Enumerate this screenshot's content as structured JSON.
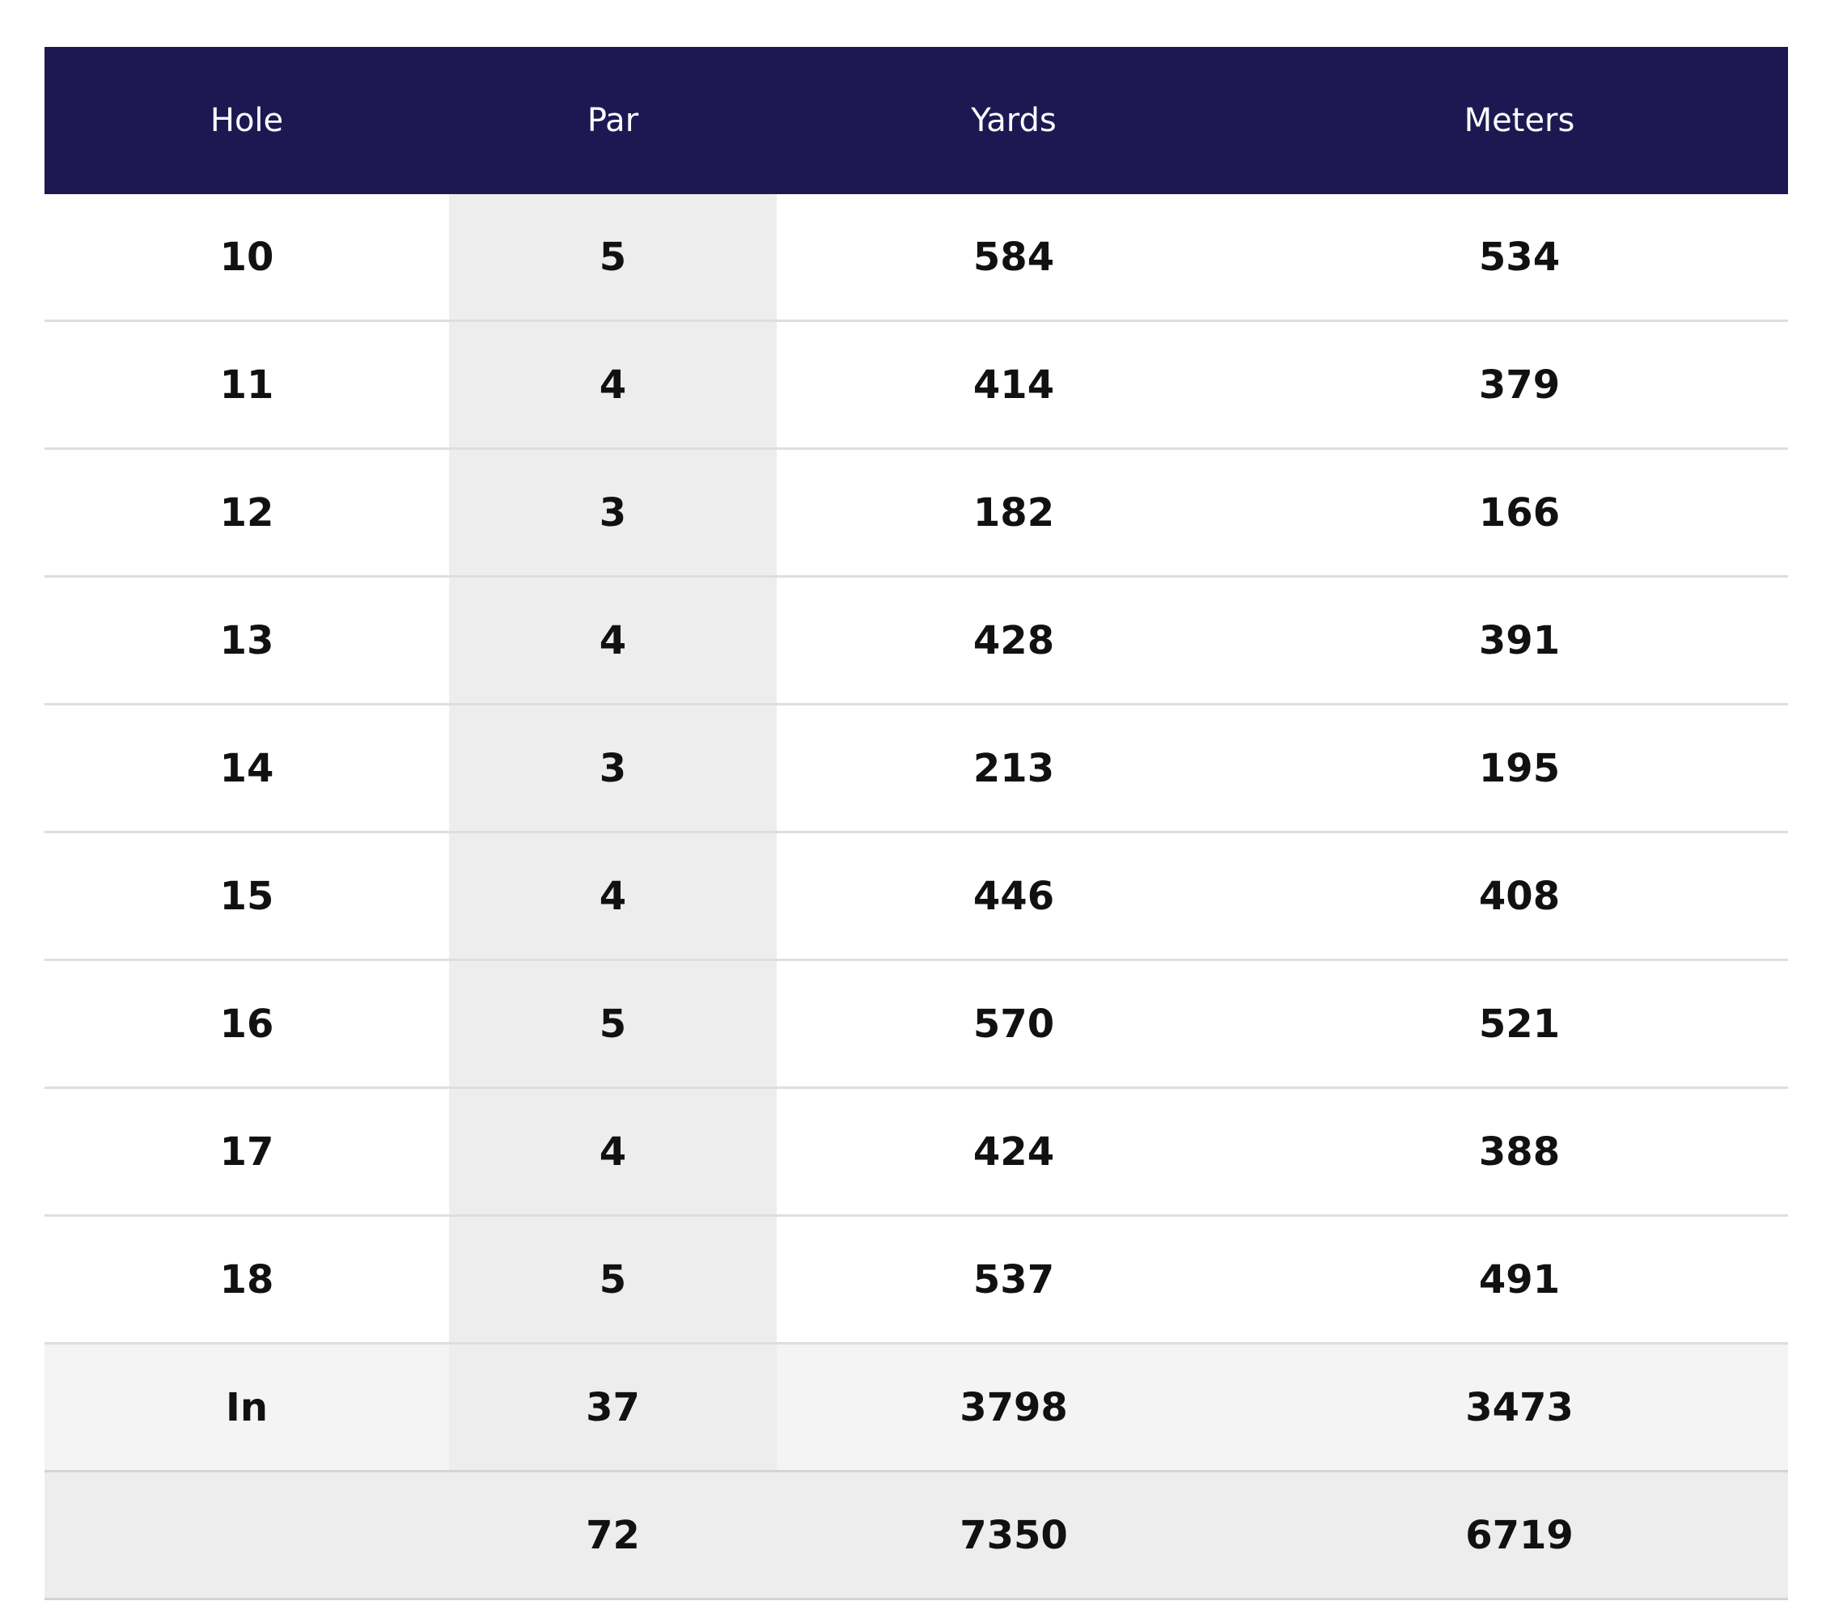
{
  "scorecard": {
    "headers": {
      "hole": "Hole",
      "par": "Par",
      "yards": "Yards",
      "meters": "Meters"
    },
    "rows": [
      {
        "hole": "10",
        "par": "5",
        "yards": "584",
        "meters": "534"
      },
      {
        "hole": "11",
        "par": "4",
        "yards": "414",
        "meters": "379"
      },
      {
        "hole": "12",
        "par": "3",
        "yards": "182",
        "meters": "166"
      },
      {
        "hole": "13",
        "par": "4",
        "yards": "428",
        "meters": "391"
      },
      {
        "hole": "14",
        "par": "3",
        "yards": "213",
        "meters": "195"
      },
      {
        "hole": "15",
        "par": "4",
        "yards": "446",
        "meters": "408"
      },
      {
        "hole": "16",
        "par": "5",
        "yards": "570",
        "meters": "521"
      },
      {
        "hole": "17",
        "par": "4",
        "yards": "424",
        "meters": "388"
      },
      {
        "hole": "18",
        "par": "5",
        "yards": "537",
        "meters": "491"
      }
    ],
    "subtotal": {
      "hole": "In",
      "par": "37",
      "yards": "3798",
      "meters": "3473"
    },
    "total": {
      "hole": "",
      "par": "72",
      "yards": "7350",
      "meters": "6719"
    }
  },
  "colors": {
    "header_background": "#1e1852",
    "header_text": "#ffffff",
    "par_column_background": "#ededed",
    "subtotal_background": "#f4f4f4",
    "total_background": "#ededed",
    "cell_text": "#111111"
  }
}
